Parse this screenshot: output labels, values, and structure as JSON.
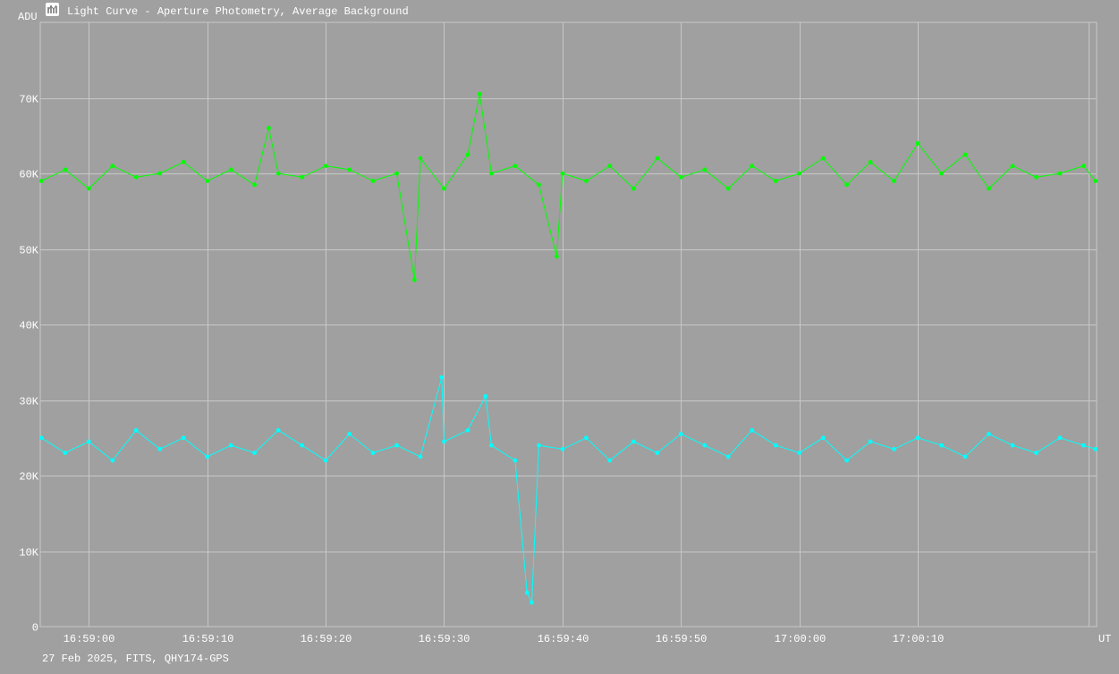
{
  "window": {
    "title": "Light Curve - Aperture Photometry, Average Background",
    "icon": "chart-app-icon"
  },
  "footer": {
    "caption": "27 Feb 2025, FITS, QHY174-GPS"
  },
  "colors": {
    "background": "#a0a0a0",
    "grid": "#c8c8c8",
    "text": "#ffffff",
    "target": "#00ff00",
    "comparison": "#00ffff"
  },
  "chart_data": {
    "type": "line",
    "title": "Light Curve - Aperture Photometry, Average Background",
    "xlabel": "UT",
    "ylabel": "ADU",
    "ylim": [
      0,
      80000
    ],
    "xlim_seconds_since_16_58_00": [
      55.9,
      145.1
    ],
    "grid": true,
    "y_ticks": [
      {
        "value": 0,
        "label": "0"
      },
      {
        "value": 10000,
        "label": "10K"
      },
      {
        "value": 20000,
        "label": "20K"
      },
      {
        "value": 30000,
        "label": "30K"
      },
      {
        "value": 40000,
        "label": "40K"
      },
      {
        "value": 50000,
        "label": "50K"
      },
      {
        "value": 60000,
        "label": "60K"
      },
      {
        "value": 70000,
        "label": "70K"
      }
    ],
    "x_ticks": [
      {
        "value": 60,
        "label": "16:59:00"
      },
      {
        "value": 70,
        "label": "16:59:10"
      },
      {
        "value": 80,
        "label": "16:59:20"
      },
      {
        "value": 90,
        "label": "16:59:30"
      },
      {
        "value": 100,
        "label": "16:59:40"
      },
      {
        "value": 110,
        "label": "16:59:50"
      },
      {
        "value": 120,
        "label": "17:00:00"
      },
      {
        "value": 130,
        "label": "17:00:10"
      }
    ],
    "series": [
      {
        "color": "#00ff00",
        "x": [
          56.0,
          58.0,
          60.0,
          62.0,
          64.0,
          66.0,
          68.0,
          70.0,
          72.0,
          74.0,
          75.2,
          76.0,
          78.0,
          80.0,
          82.0,
          84.0,
          86.0,
          87.5,
          88.0,
          90.0,
          92.0,
          93.0,
          94.0,
          96.0,
          98.0,
          99.5,
          100.0,
          102.0,
          104.0,
          106.0,
          108.0,
          110.0,
          112.0,
          114.0,
          116.0,
          118.0,
          120.0,
          122.0,
          124.0,
          126.0,
          128.0,
          130.0,
          132.0,
          134.0,
          136.0,
          138.0,
          140.0,
          142.0,
          144.0,
          145.0
        ],
        "y": [
          59000,
          60500,
          58000,
          61000,
          59500,
          60000,
          61500,
          59000,
          60500,
          58500,
          66000,
          60000,
          59500,
          61000,
          60500,
          59000,
          60000,
          45900,
          62000,
          58000,
          62500,
          70500,
          60000,
          61000,
          58500,
          49000,
          60000,
          59000,
          61000,
          58000,
          62000,
          59500,
          60500,
          58000,
          61000,
          59000,
          60000,
          62000,
          58500,
          61500,
          59000,
          64000,
          60000,
          62500,
          58000,
          61000,
          59500,
          60000,
          61000,
          59000
        ]
      },
      {
        "color": "#00ffff",
        "x": [
          56.0,
          58.0,
          60.0,
          62.0,
          64.0,
          66.0,
          68.0,
          70.0,
          72.0,
          74.0,
          76.0,
          78.0,
          80.0,
          82.0,
          84.0,
          86.0,
          88.0,
          89.8,
          90.0,
          92.0,
          93.5,
          94.0,
          96.0,
          97.0,
          97.4,
          98.0,
          100.0,
          102.0,
          104.0,
          106.0,
          108.0,
          110.0,
          112.0,
          114.0,
          116.0,
          118.0,
          120.0,
          122.0,
          124.0,
          126.0,
          128.0,
          130.0,
          132.0,
          134.0,
          136.0,
          138.0,
          140.0,
          142.0,
          144.0,
          145.0
        ],
        "y": [
          25000,
          23000,
          24500,
          22000,
          26000,
          23500,
          25000,
          22500,
          24000,
          23000,
          26000,
          24000,
          22000,
          25500,
          23000,
          24000,
          22500,
          33000,
          24500,
          26000,
          30500,
          24000,
          22000,
          4500,
          3200,
          24000,
          23500,
          25000,
          22000,
          24500,
          23000,
          25500,
          24000,
          22500,
          26000,
          24000,
          23000,
          25000,
          22000,
          24500,
          23500,
          25000,
          24000,
          22500,
          25500,
          24000,
          23000,
          25000,
          24000,
          23500
        ]
      }
    ]
  }
}
